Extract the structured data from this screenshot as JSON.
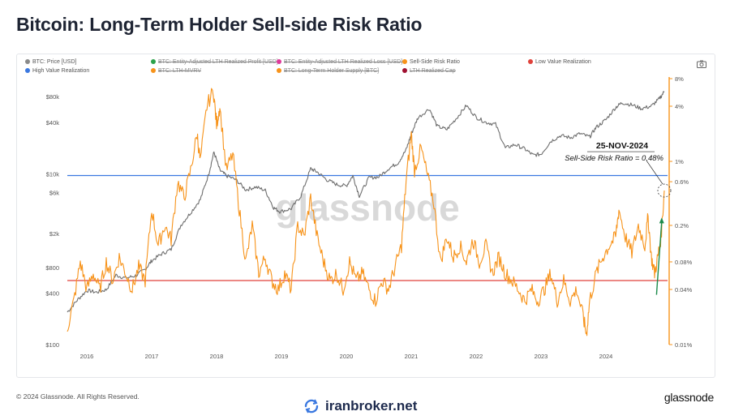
{
  "title": "Bitcoin: Long-Term Holder Sell-side Risk Ratio",
  "legend": [
    {
      "label": "BTC: Price [USD]",
      "color": "#8a8a8a",
      "active": true
    },
    {
      "label": "BTC: Entity-Adjusted LTH Realized Profit [USD]",
      "color": "#2ca24a",
      "active": false
    },
    {
      "label": "BTC: Entity-Adjusted LTH Realized Loss [USD]",
      "color": "#e0399b",
      "active": false
    },
    {
      "label": "Sell-Side Risk Ratio",
      "color": "#f7931a",
      "active": true
    },
    {
      "label": "Low Value Realization",
      "color": "#e0413a",
      "active": true
    },
    {
      "label": "High Value Realization",
      "color": "#3a78e0",
      "active": true
    },
    {
      "label": "BTC: LTH-MVRV",
      "color": "#f7931a",
      "active": false
    },
    {
      "label": "BTC: Long-Term Holder Supply [BTC]",
      "color": "#f7931a",
      "active": false
    },
    {
      "label": "LTH Realized Cap",
      "color": "#a01030",
      "active": false
    }
  ],
  "chart_data": {
    "type": "line",
    "x_axis": {
      "ticks": [
        "2016",
        "2017",
        "2018",
        "2019",
        "2020",
        "2021",
        "2022",
        "2023",
        "2024"
      ],
      "range": [
        2015.7,
        2024.95
      ]
    },
    "y_left": {
      "scale": "log",
      "range": [
        100,
        130000
      ],
      "ticks": [
        "$100",
        "$400",
        "$800",
        "$2k",
        "$6k",
        "$10k",
        "$40k",
        "$80k"
      ],
      "tick_values": [
        100,
        400,
        800,
        2000,
        6000,
        10000,
        40000,
        80000
      ]
    },
    "y_right": {
      "scale": "log",
      "range": [
        0.0001,
        0.08
      ],
      "ticks": [
        "0.01%",
        "0.04%",
        "0.08%",
        "0.2%",
        "0.6%",
        "1%",
        "4%",
        "8%"
      ],
      "tick_values": [
        0.0001,
        0.0004,
        0.0008,
        0.002,
        0.006,
        0.01,
        0.04,
        0.08
      ]
    },
    "series": [
      {
        "name": "BTC: Price [USD]",
        "axis": "left",
        "color": "#6e6e6e",
        "points": [
          [
            2015.7,
            240
          ],
          [
            2015.85,
            330
          ],
          [
            2016.0,
            430
          ],
          [
            2016.15,
            410
          ],
          [
            2016.3,
            440
          ],
          [
            2016.45,
            650
          ],
          [
            2016.6,
            600
          ],
          [
            2016.75,
            640
          ],
          [
            2016.9,
            760
          ],
          [
            2017.0,
            960
          ],
          [
            2017.15,
            1150
          ],
          [
            2017.3,
            1300
          ],
          [
            2017.45,
            2500
          ],
          [
            2017.6,
            3500
          ],
          [
            2017.75,
            5000
          ],
          [
            2017.88,
            10000
          ],
          [
            2017.96,
            18000
          ],
          [
            2018.05,
            11000
          ],
          [
            2018.15,
            9500
          ],
          [
            2018.3,
            8500
          ],
          [
            2018.45,
            6500
          ],
          [
            2018.6,
            7000
          ],
          [
            2018.75,
            6400
          ],
          [
            2018.88,
            4000
          ],
          [
            2018.98,
            3600
          ],
          [
            2019.15,
            3900
          ],
          [
            2019.3,
            5500
          ],
          [
            2019.45,
            11500
          ],
          [
            2019.55,
            10500
          ],
          [
            2019.7,
            8500
          ],
          [
            2019.85,
            7500
          ],
          [
            2020.0,
            7200
          ],
          [
            2020.1,
            9500
          ],
          [
            2020.2,
            5500
          ],
          [
            2020.35,
            9000
          ],
          [
            2020.5,
            9200
          ],
          [
            2020.65,
            11500
          ],
          [
            2020.8,
            13500
          ],
          [
            2020.92,
            19000
          ],
          [
            2021.0,
            29000
          ],
          [
            2021.1,
            45000
          ],
          [
            2021.28,
            58000
          ],
          [
            2021.4,
            36000
          ],
          [
            2021.55,
            33000
          ],
          [
            2021.7,
            45000
          ],
          [
            2021.85,
            63000
          ],
          [
            2022.0,
            46000
          ],
          [
            2022.15,
            40000
          ],
          [
            2022.3,
            38000
          ],
          [
            2022.45,
            20000
          ],
          [
            2022.6,
            22000
          ],
          [
            2022.75,
            19500
          ],
          [
            2022.88,
            16500
          ],
          [
            2023.0,
            17000
          ],
          [
            2023.15,
            24000
          ],
          [
            2023.3,
            28000
          ],
          [
            2023.45,
            26500
          ],
          [
            2023.6,
            29500
          ],
          [
            2023.75,
            27000
          ],
          [
            2023.85,
            35000
          ],
          [
            2024.0,
            43000
          ],
          [
            2024.15,
            60000
          ],
          [
            2024.25,
            68000
          ],
          [
            2024.4,
            64000
          ],
          [
            2024.55,
            58000
          ],
          [
            2024.7,
            62000
          ],
          [
            2024.82,
            75000
          ],
          [
            2024.9,
            92000
          ]
        ]
      },
      {
        "name": "Sell-Side Risk Ratio",
        "axis": "right",
        "color": "#f7931a",
        "points": [
          [
            2015.7,
            0.00015
          ],
          [
            2015.8,
            0.0003
          ],
          [
            2015.9,
            0.0008
          ],
          [
            2016.0,
            0.0004
          ],
          [
            2016.1,
            0.0006
          ],
          [
            2016.2,
            0.0004
          ],
          [
            2016.3,
            0.0008
          ],
          [
            2016.4,
            0.0005
          ],
          [
            2016.5,
            0.0009
          ],
          [
            2016.6,
            0.0006
          ],
          [
            2016.7,
            0.0004
          ],
          [
            2016.8,
            0.0007
          ],
          [
            2016.9,
            0.0005
          ],
          [
            2017.0,
            0.003
          ],
          [
            2017.1,
            0.0012
          ],
          [
            2017.2,
            0.002
          ],
          [
            2017.3,
            0.0014
          ],
          [
            2017.4,
            0.006
          ],
          [
            2017.5,
            0.004
          ],
          [
            2017.6,
            0.008
          ],
          [
            2017.7,
            0.02
          ],
          [
            2017.75,
            0.01
          ],
          [
            2017.85,
            0.04
          ],
          [
            2017.95,
            0.06
          ],
          [
            2018.0,
            0.025
          ],
          [
            2018.05,
            0.04
          ],
          [
            2018.15,
            0.008
          ],
          [
            2018.25,
            0.012
          ],
          [
            2018.35,
            0.003
          ],
          [
            2018.45,
            0.0008
          ],
          [
            2018.55,
            0.002
          ],
          [
            2018.65,
            0.0006
          ],
          [
            2018.75,
            0.0009
          ],
          [
            2018.85,
            0.0005
          ],
          [
            2018.95,
            0.0004
          ],
          [
            2019.05,
            0.0006
          ],
          [
            2019.15,
            0.0004
          ],
          [
            2019.25,
            0.002
          ],
          [
            2019.35,
            0.0015
          ],
          [
            2019.45,
            0.004
          ],
          [
            2019.55,
            0.0015
          ],
          [
            2019.65,
            0.0008
          ],
          [
            2019.75,
            0.0005
          ],
          [
            2019.85,
            0.0006
          ],
          [
            2019.95,
            0.0004
          ],
          [
            2020.05,
            0.0008
          ],
          [
            2020.15,
            0.0005
          ],
          [
            2020.25,
            0.0006
          ],
          [
            2020.35,
            0.0004
          ],
          [
            2020.45,
            0.0003
          ],
          [
            2020.55,
            0.0005
          ],
          [
            2020.65,
            0.0004
          ],
          [
            2020.75,
            0.0007
          ],
          [
            2020.85,
            0.0012
          ],
          [
            2020.92,
            0.006
          ],
          [
            2021.0,
            0.02
          ],
          [
            2021.05,
            0.008
          ],
          [
            2021.15,
            0.014
          ],
          [
            2021.25,
            0.007
          ],
          [
            2021.35,
            0.0035
          ],
          [
            2021.45,
            0.0008
          ],
          [
            2021.55,
            0.0015
          ],
          [
            2021.65,
            0.0009
          ],
          [
            2021.75,
            0.0012
          ],
          [
            2021.85,
            0.0008
          ],
          [
            2021.95,
            0.0014
          ],
          [
            2022.05,
            0.0008
          ],
          [
            2022.15,
            0.0012
          ],
          [
            2022.25,
            0.0006
          ],
          [
            2022.35,
            0.0009
          ],
          [
            2022.45,
            0.0006
          ],
          [
            2022.55,
            0.0005
          ],
          [
            2022.65,
            0.0004
          ],
          [
            2022.75,
            0.0003
          ],
          [
            2022.85,
            0.0004
          ],
          [
            2022.95,
            0.0003
          ],
          [
            2023.05,
            0.0004
          ],
          [
            2023.15,
            0.0006
          ],
          [
            2023.25,
            0.0003
          ],
          [
            2023.35,
            0.0005
          ],
          [
            2023.45,
            0.0003
          ],
          [
            2023.55,
            0.0004
          ],
          [
            2023.65,
            0.0002
          ],
          [
            2023.7,
            0.00013
          ],
          [
            2023.75,
            0.0003
          ],
          [
            2023.85,
            0.0006
          ],
          [
            2023.95,
            0.0009
          ],
          [
            2024.05,
            0.0012
          ],
          [
            2024.15,
            0.0015
          ],
          [
            2024.2,
            0.003
          ],
          [
            2024.3,
            0.0015
          ],
          [
            2024.4,
            0.001
          ],
          [
            2024.5,
            0.002
          ],
          [
            2024.6,
            0.0012
          ],
          [
            2024.65,
            0.0025
          ],
          [
            2024.7,
            0.0009
          ],
          [
            2024.75,
            0.0006
          ],
          [
            2024.8,
            0.0009
          ],
          [
            2024.85,
            0.0015
          ],
          [
            2024.9,
            0.0048
          ]
        ]
      }
    ],
    "reference_lines": [
      {
        "name": "High Value Realization",
        "axis": "right",
        "value": 0.007,
        "color": "#3a78e0"
      },
      {
        "name": "Low Value Realization",
        "axis": "right",
        "value": 0.0005,
        "color": "#e0413a"
      }
    ],
    "annotation": {
      "date": "25-NOV-2024",
      "text": "Sell-Side Risk Ratio = 0.48%",
      "x": 2024.9,
      "value": 0.0048
    }
  },
  "watermark": "glassnode",
  "footer": {
    "copyright": "© 2024 Glassnode. All Rights Reserved.",
    "brand": "glassnode",
    "site": "iranbroker.net"
  }
}
